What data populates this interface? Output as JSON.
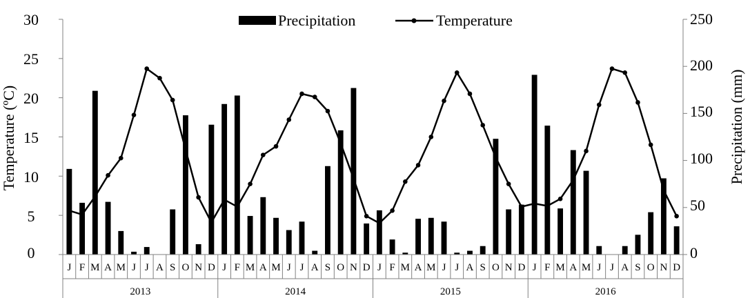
{
  "chart_data": {
    "type": "bar+line",
    "series": [
      {
        "name": "Precipitation",
        "type": "bar",
        "axis": "right",
        "values": [
          91,
          55,
          174,
          56,
          25,
          3,
          8,
          0,
          48,
          148,
          11,
          138,
          160,
          169,
          41,
          61,
          39,
          26,
          35,
          4,
          94,
          132,
          177,
          33,
          47,
          16,
          2,
          38,
          39,
          35,
          2,
          4,
          9,
          123,
          48,
          53,
          191,
          137,
          49,
          111,
          89,
          9,
          0,
          9,
          21,
          45,
          81,
          30
        ]
      },
      {
        "name": "Temperature",
        "type": "line",
        "axis": "left",
        "values": [
          5.6,
          5.1,
          7.4,
          10.1,
          12.3,
          17.8,
          23.7,
          22.5,
          19.7,
          13.4,
          7.3,
          4.1,
          7.0,
          6.1,
          9.0,
          12.7,
          13.8,
          17.2,
          20.5,
          20.1,
          18.3,
          14.2,
          9.7,
          4.9,
          4.0,
          5.6,
          9.3,
          11.4,
          15.0,
          19.6,
          23.2,
          20.5,
          16.5,
          12.4,
          9.0,
          6.1,
          6.5,
          6.2,
          7.1,
          9.5,
          13.2,
          19.1,
          23.7,
          23.2,
          19.4,
          14.0,
          8.2,
          4.9
        ]
      }
    ],
    "month_labels": [
      "J",
      "F",
      "M",
      "A",
      "M",
      "J",
      "J",
      "A",
      "S",
      "O",
      "N",
      "D"
    ],
    "years": [
      "2013",
      "2014",
      "2015",
      "2016"
    ],
    "y_left": {
      "label": "Temperature (ºC)",
      "min": 0,
      "max": 30,
      "step": 5,
      "ticks": [
        "0",
        "5",
        "10",
        "15",
        "20",
        "25",
        "30"
      ]
    },
    "y_right": {
      "label": "Precipitation (mm)",
      "min": 0,
      "max": 250,
      "step": 50,
      "ticks": [
        "0",
        "50",
        "100",
        "150",
        "200",
        "250"
      ]
    },
    "legend_position": "top-center",
    "grid": false,
    "colors": {
      "bars": "#000000",
      "line": "#000000",
      "axis": "#808080",
      "text": "#000000"
    }
  }
}
